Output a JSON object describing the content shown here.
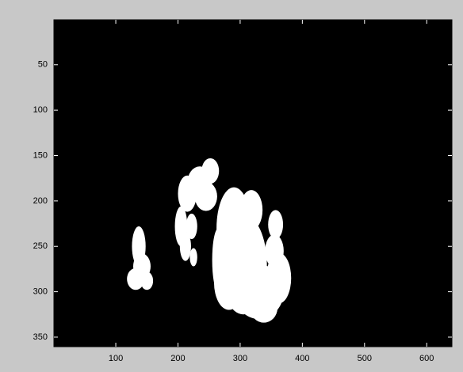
{
  "chart_data": {
    "type": "image",
    "xlim": [
      0.5,
      640.5
    ],
    "ylim": [
      0.5,
      360.5
    ],
    "y_direction": "reverse",
    "xticks": [
      100,
      200,
      300,
      400,
      500,
      600
    ],
    "yticks": [
      50,
      100,
      150,
      200,
      250,
      300,
      350
    ]
  }
}
